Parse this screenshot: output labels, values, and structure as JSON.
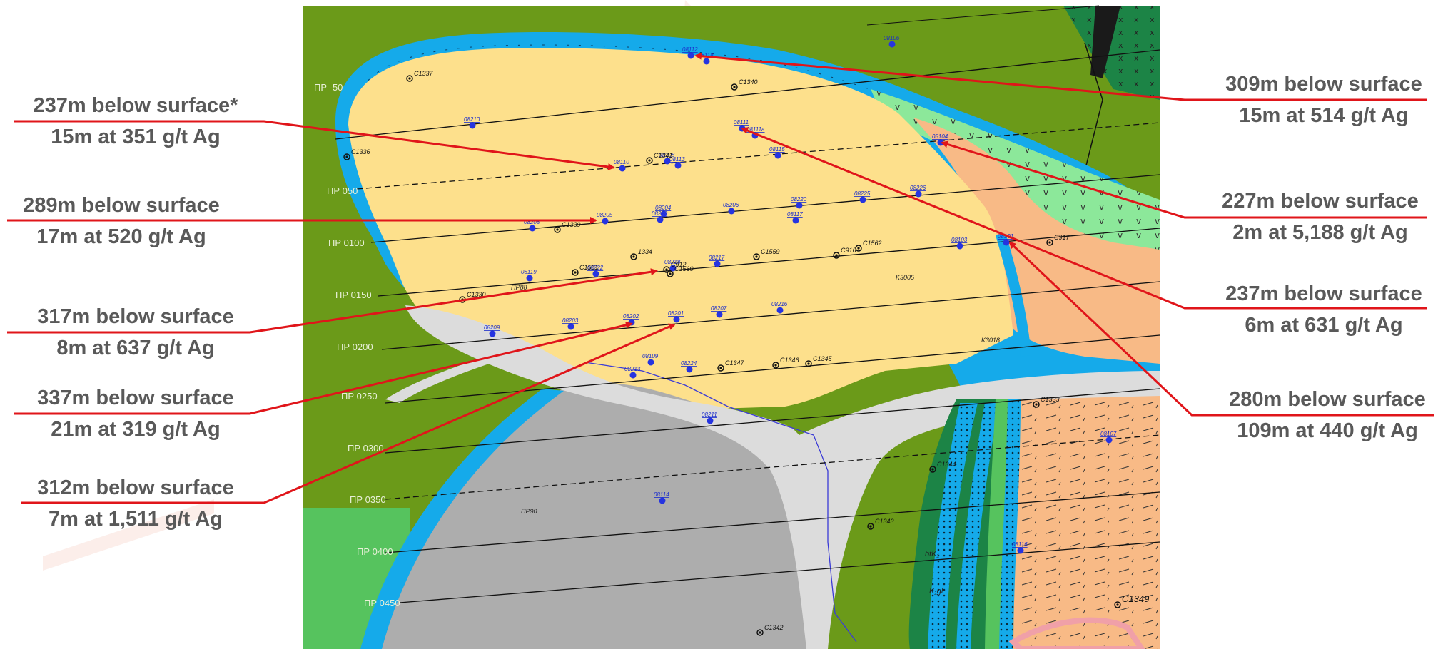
{
  "intercepts": [
    {
      "id": "left-1",
      "depth": "237m below surface*",
      "result": "15m at 351 g/t Ag",
      "side": "left"
    },
    {
      "id": "left-2",
      "depth": "289m below surface",
      "result": "17m at 520 g/t Ag",
      "side": "left"
    },
    {
      "id": "left-3",
      "depth": "317m below surface",
      "result": "8m at 637 g/t Ag",
      "side": "left"
    },
    {
      "id": "left-4",
      "depth": "337m below surface",
      "result": "21m at 319 g/t Ag",
      "side": "left"
    },
    {
      "id": "left-5",
      "depth": "312m below surface",
      "result": "7m at 1,511 g/t Ag",
      "side": "left"
    },
    {
      "id": "right-1",
      "depth": "309m below surface",
      "result": "15m at 514 g/t Ag",
      "side": "right"
    },
    {
      "id": "right-2",
      "depth": "227m below surface",
      "result": "2m at 5,188 g/t Ag",
      "side": "right"
    },
    {
      "id": "right-3",
      "depth": "237m below surface",
      "result": "6m at 631 g/t Ag",
      "side": "right"
    },
    {
      "id": "right-4",
      "depth": "280m below surface",
      "result": "109m at 440 g/t Ag",
      "side": "right"
    }
  ],
  "profiles": [
    "ПР -50",
    "ПР 050",
    "ПР 0100",
    "ПР 0150",
    "ПР 0200",
    "ПР 0250",
    "ПР 0300",
    "ПР 0350",
    "ПР 0400",
    "ПР 0450"
  ],
  "drillholes": {
    "blue": [
      "08106",
      "08112",
      "08118",
      "08210",
      "08111",
      "08111a",
      "08104",
      "08110",
      "08108",
      "08113",
      "08115",
      "08226",
      "08225",
      "08220",
      "08206",
      "08117",
      "08204",
      "08223",
      "08205",
      "08208",
      "08103",
      "08101",
      "08119",
      "08222",
      "08218",
      "08217",
      "08207",
      "08216",
      "08203",
      "08202",
      "08201",
      "08209",
      "08109",
      "08224",
      "08213",
      "08211",
      "08114",
      "08107",
      "08116"
    ],
    "black": [
      "C1337",
      "C1340",
      "C1336",
      "C1341",
      "C1339",
      "C1559",
      "C916",
      "C1562",
      "C917",
      "C1561",
      "C912",
      "C1560",
      "C1330",
      "C1347",
      "C1346",
      "C1345",
      "C1333",
      "C1344",
      "C1343",
      "C1342",
      "C1349",
      "1334"
    ]
  },
  "map_text": {
    "k3005": "K3005",
    "k3018": "K3018",
    "p88": "ПР88",
    "p90": "ПР90",
    "btk": "btK₁",
    "kgl": "K₁gl",
    "w1333": "1333"
  },
  "colors": {
    "green_olive": "#6b9a19",
    "deposit_yellow": "#fde08c",
    "deposit_orange": "#f8ba86",
    "blue_border": "#15aaea",
    "light_green": "#8ce89a",
    "grey_dark": "#adadad",
    "grey_light": "#dcdcdc",
    "arrow_red": "#e0151a",
    "label_text": "#595959",
    "hole_blue": "#2634e0"
  }
}
